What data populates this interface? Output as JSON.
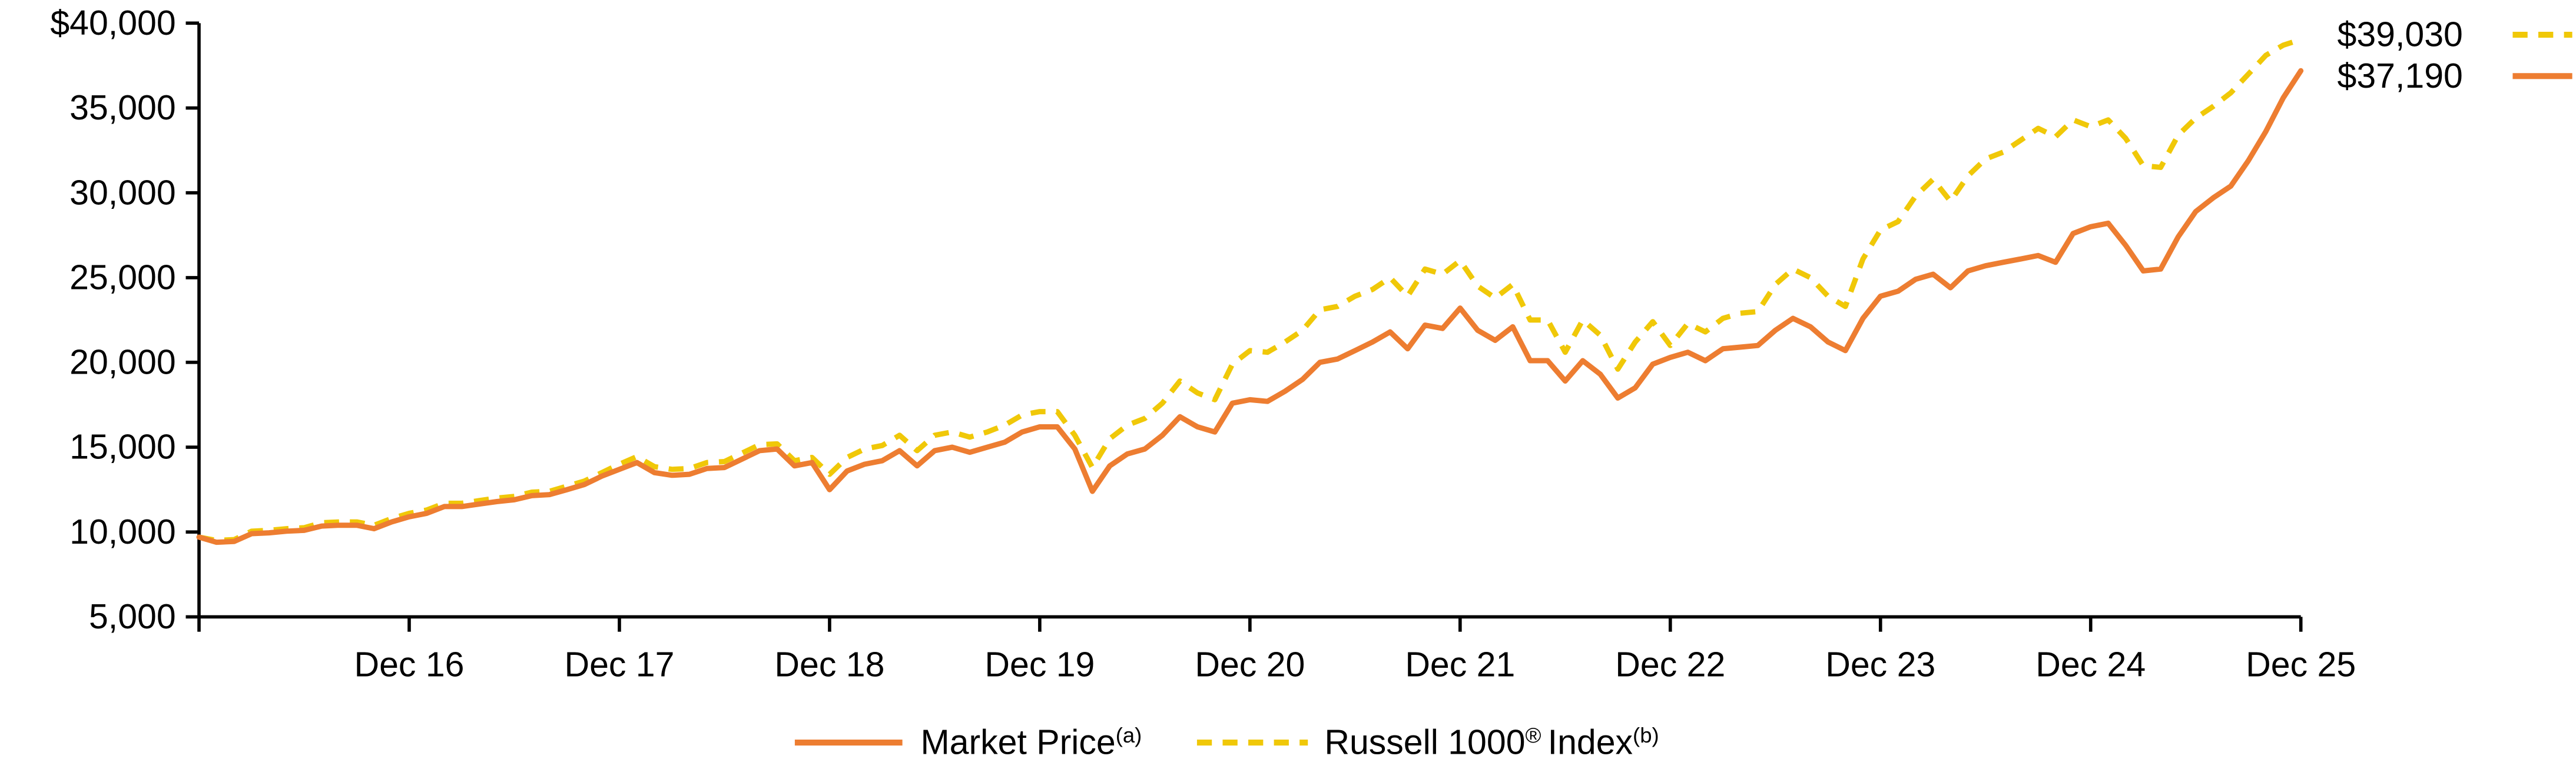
{
  "chart_data": {
    "type": "line",
    "grid": false,
    "legend_position": "bottom-center",
    "x_frequency": "monthly",
    "x_tick_labels": [
      "Dec 16",
      "Dec 17",
      "Dec 18",
      "Dec 19",
      "Dec 20",
      "Dec 21",
      "Dec 22",
      "Dec 23",
      "Dec 24",
      "Dec 25"
    ],
    "y_tick_labels": [
      "$40,000",
      "35,000",
      "30,000",
      "25,000",
      "20,000",
      "15,000",
      "10,000",
      "5,000"
    ],
    "ylim": [
      5000,
      40000
    ],
    "axis_color": "#000000",
    "series": [
      {
        "name": "Market Price",
        "footnote": "(a)",
        "color": "#ED7D31",
        "line_style": "solid",
        "end_label": "$37,190",
        "end_value": 37190,
        "values": [
          9700,
          9400,
          9450,
          9900,
          9950,
          10050,
          10100,
          10350,
          10400,
          10400,
          10200,
          10600,
          10900,
          11100,
          11500,
          11500,
          11650,
          11800,
          11900,
          12150,
          12200,
          12500,
          12800,
          13300,
          13700,
          14100,
          13500,
          13350,
          13400,
          13750,
          13800,
          14300,
          14800,
          14900,
          13900,
          14100,
          12500,
          13600,
          14000,
          14200,
          14800,
          13900,
          14800,
          15000,
          14700,
          15000,
          15300,
          15900,
          16200,
          16200,
          14900,
          12400,
          13900,
          14600,
          14900,
          15700,
          16800,
          16200,
          15900,
          17600,
          17800,
          17700,
          18300,
          19000,
          20000,
          20200,
          20700,
          21200,
          21800,
          20800,
          22200,
          22000,
          23200,
          21900,
          21300,
          22100,
          20100,
          20100,
          18900,
          20100,
          19300,
          17900,
          18500,
          19900,
          20300,
          20600,
          20100,
          20800,
          20900,
          21000,
          21900,
          22600,
          22100,
          21200,
          20700,
          22600,
          23900,
          24200,
          24900,
          25200,
          24400,
          25400,
          25700,
          25900,
          26100,
          26300,
          25900,
          27600,
          28000,
          28200,
          26900,
          25400,
          25500,
          27400,
          28900,
          29700,
          30400,
          31900,
          33600,
          35600,
          37190
        ]
      },
      {
        "name": "Russell 1000® Index",
        "footnote": "(b)",
        "color": "#F0C808",
        "line_style": "dashed",
        "end_label": "$39,030",
        "end_value": 39030,
        "values": [
          9700,
          9500,
          9550,
          10050,
          10100,
          10200,
          10250,
          10550,
          10600,
          10600,
          10400,
          10800,
          11100,
          11300,
          11700,
          11700,
          11850,
          12000,
          12100,
          12350,
          12400,
          12700,
          13000,
          13500,
          14000,
          14450,
          13850,
          13700,
          13750,
          14100,
          14150,
          14650,
          15150,
          15200,
          14200,
          14400,
          13400,
          14400,
          14900,
          15100,
          15700,
          14800,
          15700,
          15900,
          15600,
          15900,
          16300,
          16900,
          17100,
          17100,
          15700,
          13800,
          15500,
          16300,
          16700,
          17600,
          18900,
          18200,
          17800,
          19900,
          20700,
          20600,
          21200,
          21900,
          23100,
          23300,
          23900,
          24300,
          25000,
          23900,
          25500,
          25200,
          26000,
          24500,
          23800,
          24600,
          22500,
          22500,
          20600,
          22500,
          21600,
          19600,
          21200,
          22400,
          21000,
          22300,
          21800,
          22600,
          22900,
          23000,
          24600,
          25500,
          25000,
          23900,
          23300,
          26100,
          27800,
          28300,
          29800,
          30800,
          29500,
          31000,
          32000,
          32400,
          33100,
          33800,
          33300,
          34300,
          33900,
          34300,
          33200,
          31600,
          31500,
          33400,
          34400,
          35100,
          35900,
          37000,
          38100,
          38700,
          39030
        ]
      }
    ]
  },
  "legend": {
    "items": [
      {
        "label": "Market Price",
        "superscript": "(a)"
      },
      {
        "label_pre": "Russell 1000",
        "registered_mark": "®",
        "label_post": "Index",
        "superscript": "(b)"
      }
    ]
  }
}
